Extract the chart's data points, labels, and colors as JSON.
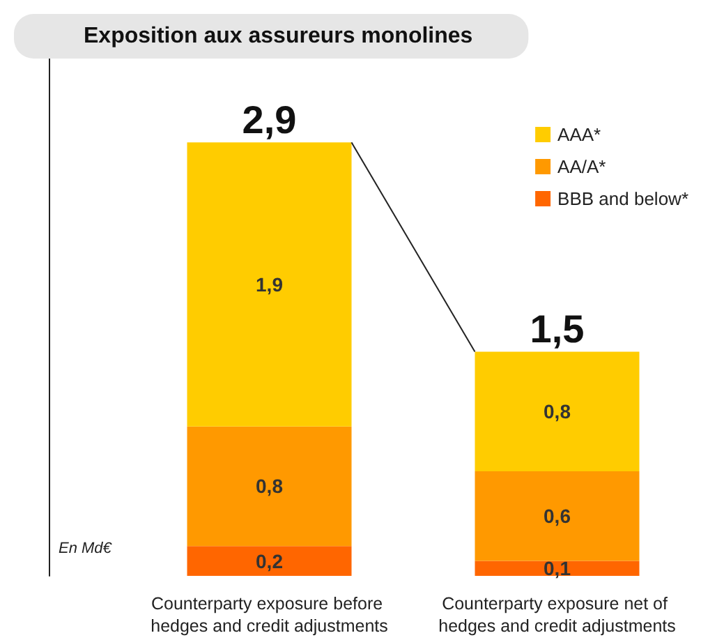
{
  "chart_data": {
    "type": "bar",
    "title": "Exposition aux assureurs monolines",
    "categories": [
      "Counterparty exposure before hedges and credit adjustments",
      "Counterparty exposure net of hedges and credit adjustments"
    ],
    "stacked": true,
    "series": [
      {
        "name": "BBB and below*",
        "color": "#ff6600",
        "values": [
          0.2,
          0.1
        ],
        "value_labels": [
          "0,2",
          "0,1"
        ]
      },
      {
        "name": "AA/A*",
        "color": "#ff9900",
        "values": [
          0.8,
          0.6
        ],
        "value_labels": [
          "0,8",
          "0,6"
        ]
      },
      {
        "name": "AAA*",
        "color": "#ffcc00",
        "values": [
          1.9,
          0.8
        ],
        "value_labels": [
          "1,9",
          "0,8"
        ]
      }
    ],
    "totals": [
      "2,9",
      "1,5"
    ],
    "annotations": [
      "En Md€"
    ],
    "legend": "top right",
    "tick_labels": "x",
    "grid": false
  }
}
